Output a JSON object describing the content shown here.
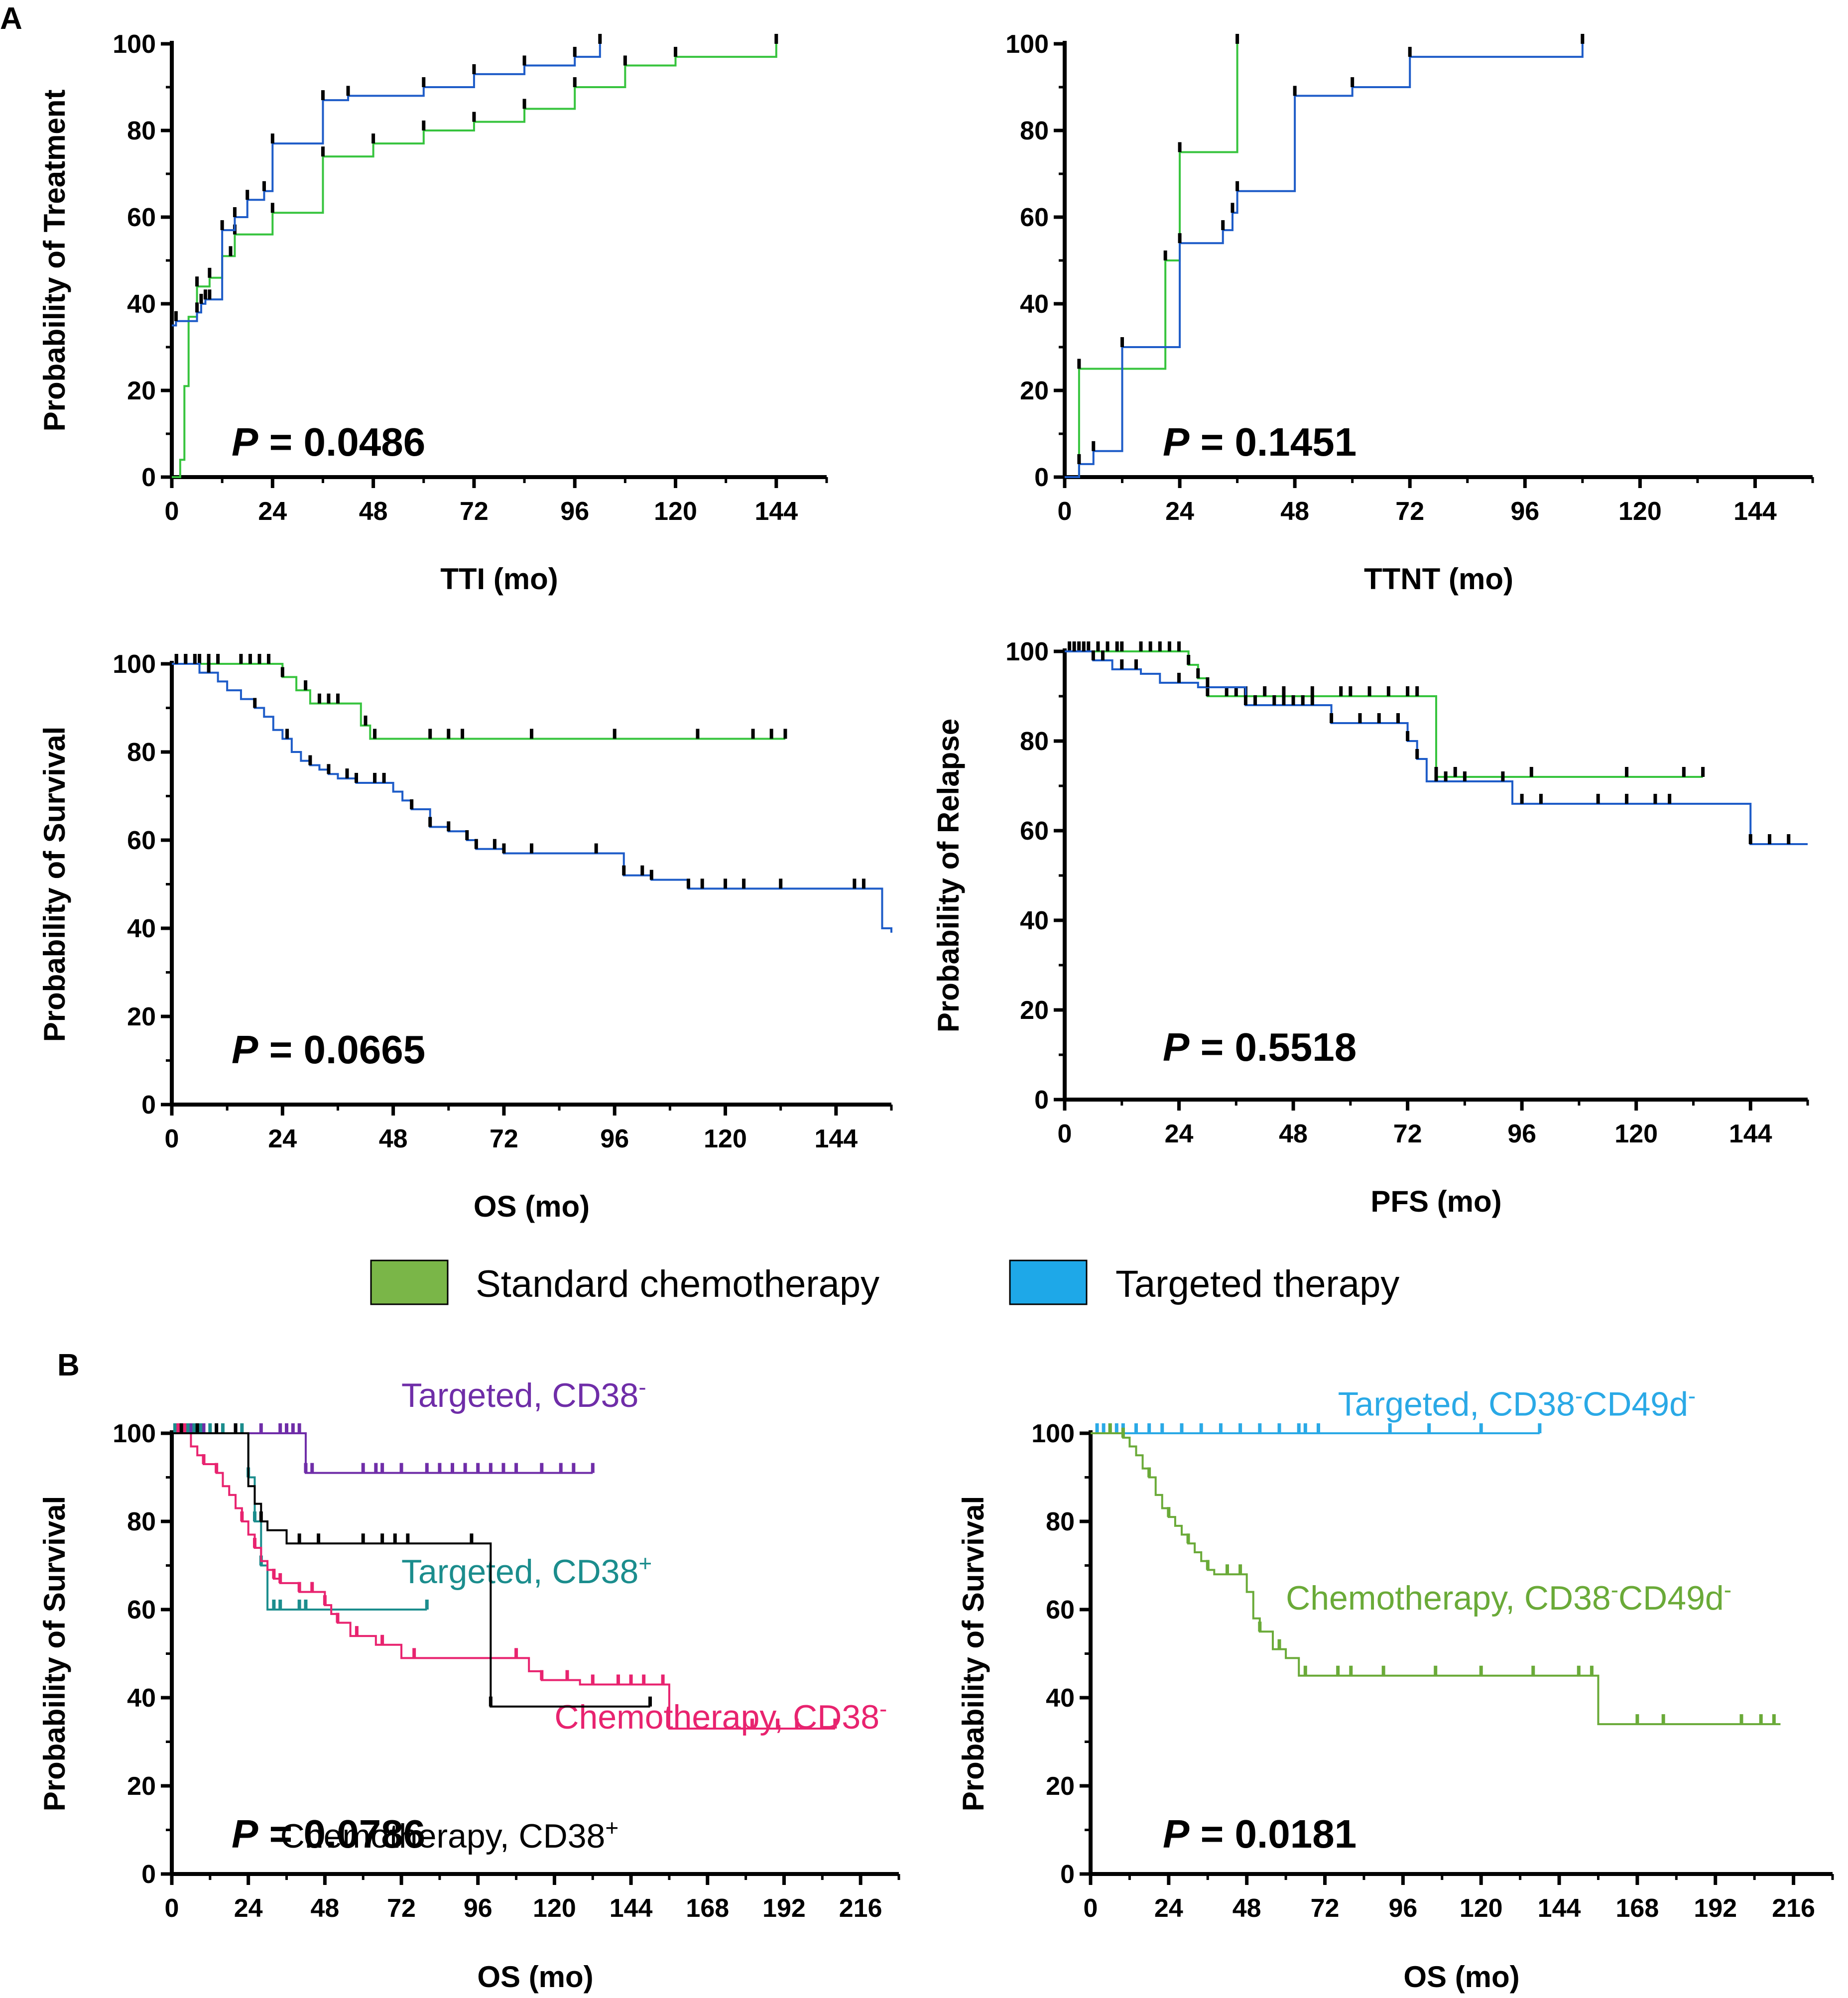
{
  "figure": {
    "panel_labels": [
      "A",
      "B"
    ],
    "legend": [
      {
        "label": "Standard chemotherapy",
        "color": "#7ab648"
      },
      {
        "label": "Targeted therapy",
        "color": "#1ea8e8"
      }
    ]
  },
  "chart_data": [
    {
      "id": "A1",
      "type": "line",
      "step": true,
      "xlabel": "TTI (mo)",
      "ylabel": "Probability of Treatment",
      "xlim": [
        0,
        156
      ],
      "ylim": [
        0,
        100
      ],
      "xticks": [
        "0",
        "24",
        "48",
        "72",
        "96",
        "120",
        "144"
      ],
      "yticks": [
        "0",
        "20",
        "40",
        "60",
        "80",
        "100"
      ],
      "p_prefix": "P",
      "p_text": "= 0.0486",
      "series": [
        {
          "name": "Standard chemotherapy",
          "color": "#37c43e",
          "x": [
            0,
            2,
            3,
            4,
            6,
            9,
            12,
            15,
            17,
            24,
            36,
            48,
            60,
            72,
            84,
            96,
            108,
            120,
            144
          ],
          "y": [
            0,
            4,
            21,
            37,
            44,
            46,
            51,
            56,
            56,
            61,
            74,
            77,
            80,
            82,
            85,
            90,
            95,
            97,
            100
          ],
          "censor_x": [
            6,
            9,
            14,
            15,
            24,
            36,
            48,
            60,
            72,
            84,
            96,
            108,
            120,
            144
          ]
        },
        {
          "name": "Targeted therapy",
          "color": "#1e5cc8",
          "x": [
            0,
            1,
            6,
            7,
            8,
            9,
            12,
            13,
            15,
            18,
            22,
            24,
            36,
            42,
            60,
            72,
            84,
            96,
            102
          ],
          "y": [
            35,
            36,
            38,
            40,
            41,
            41,
            57,
            57,
            60,
            64,
            66,
            77,
            87,
            88,
            90,
            93,
            95,
            97,
            100
          ],
          "censor_x": [
            1,
            6,
            7,
            8,
            9,
            12,
            15,
            18,
            22,
            24,
            36,
            42,
            60,
            72,
            84,
            96,
            102
          ]
        }
      ]
    },
    {
      "id": "A2",
      "type": "line",
      "step": true,
      "xlabel": "TTNT (mo)",
      "ylabel": "",
      "xlim": [
        0,
        156
      ],
      "ylim": [
        0,
        100
      ],
      "xticks": [
        "0",
        "24",
        "48",
        "72",
        "96",
        "120",
        "144"
      ],
      "yticks": [
        "0",
        "20",
        "40",
        "60",
        "80",
        "100"
      ],
      "p_prefix": "P",
      "p_text": "= 0.1451",
      "series": [
        {
          "name": "Standard chemotherapy",
          "color": "#37c43e",
          "x": [
            0,
            3,
            21,
            24,
            36
          ],
          "y": [
            0,
            25,
            50,
            75,
            100
          ],
          "censor_x": [
            3,
            21,
            24,
            36
          ]
        },
        {
          "name": "Targeted therapy",
          "color": "#1e5cc8",
          "x": [
            0,
            3,
            5,
            6,
            12,
            24,
            33,
            35,
            36,
            48,
            60,
            72,
            108
          ],
          "y": [
            0,
            3,
            3,
            6,
            30,
            54,
            57,
            61,
            66,
            88,
            90,
            97,
            100
          ],
          "censor_x": [
            3,
            6,
            12,
            24,
            33,
            35,
            36,
            48,
            60,
            72,
            108
          ]
        }
      ]
    },
    {
      "id": "A3",
      "type": "line",
      "step": true,
      "xlabel": "OS (mo)",
      "ylabel": "Probability of Survival",
      "xlim": [
        0,
        156
      ],
      "ylim": [
        0,
        100
      ],
      "xticks": [
        "0",
        "24",
        "48",
        "72",
        "96",
        "120",
        "144"
      ],
      "yticks": [
        "0",
        "20",
        "40",
        "60",
        "80",
        "100"
      ],
      "p_prefix": "P",
      "p_text": "= 0.0665",
      "series": [
        {
          "name": "Standard chemotherapy",
          "color": "#37c43e",
          "x": [
            0,
            24,
            27,
            30,
            41,
            43,
            133
          ],
          "y": [
            100,
            97,
            94,
            91,
            86,
            83,
            83
          ],
          "censor_x": [
            1,
            3,
            6,
            8,
            10,
            15,
            17,
            19,
            21,
            24,
            29,
            32,
            34,
            36,
            42,
            44,
            56,
            60,
            63,
            78,
            96,
            114,
            126,
            130,
            133
          ]
        },
        {
          "name": "Targeted therapy",
          "color": "#1e5cc8",
          "x": [
            0,
            6,
            10,
            12,
            15,
            18,
            20,
            22,
            24,
            26,
            28,
            30,
            32,
            34,
            36,
            40,
            48,
            50,
            52,
            56,
            60,
            64,
            66,
            72,
            98,
            104,
            112,
            116,
            152,
            154,
            156
          ],
          "y": [
            100,
            98,
            96,
            94,
            92,
            90,
            88,
            85,
            83,
            80,
            78,
            77,
            76,
            75,
            74,
            73,
            71,
            69,
            67,
            63,
            62,
            60,
            58,
            57,
            52,
            51,
            49,
            49,
            49,
            40,
            39
          ],
          "censor_x": [
            1,
            3,
            5,
            8,
            18,
            25,
            30,
            34,
            38,
            40,
            44,
            46,
            52,
            56,
            60,
            64,
            66,
            70,
            72,
            78,
            92,
            98,
            102,
            104,
            112,
            115,
            120,
            124,
            132,
            148,
            150
          ]
        }
      ]
    },
    {
      "id": "A4",
      "type": "line",
      "step": true,
      "xlabel": "PFS (mo)",
      "ylabel": "Probability of Relapse",
      "xlim": [
        0,
        156
      ],
      "ylim": [
        0,
        100
      ],
      "xticks": [
        "0",
        "24",
        "48",
        "72",
        "96",
        "120",
        "144"
      ],
      "yticks": [
        "0",
        "20",
        "40",
        "60",
        "80",
        "100"
      ],
      "p_prefix": "P",
      "p_text": "= 0.5518",
      "series": [
        {
          "name": "Standard chemotherapy",
          "color": "#37c43e",
          "x": [
            0,
            26,
            28,
            30,
            76,
            78,
            134
          ],
          "y": [
            100,
            97,
            94,
            90,
            90,
            72,
            72
          ],
          "censor_x": [
            1,
            3,
            5,
            7,
            9,
            11,
            12,
            16,
            18,
            20,
            22,
            24,
            26,
            28,
            30,
            34,
            36,
            38,
            42,
            46,
            52,
            58,
            60,
            64,
            68,
            72,
            74,
            78,
            82,
            98,
            118,
            130,
            134
          ]
        },
        {
          "name": "Targeted therapy",
          "color": "#1e5cc8",
          "x": [
            0,
            6,
            10,
            16,
            20,
            28,
            38,
            56,
            72,
            74,
            76,
            94,
            144,
            156
          ],
          "y": [
            100,
            98,
            96,
            95,
            93,
            92,
            88,
            84,
            80,
            76,
            71,
            66,
            57,
            57
          ],
          "censor_x": [
            2,
            4,
            6,
            8,
            12,
            15,
            24,
            30,
            38,
            40,
            44,
            46,
            48,
            50,
            52,
            56,
            62,
            66,
            70,
            72,
            74,
            78,
            80,
            84,
            92,
            96,
            100,
            112,
            118,
            124,
            127,
            144,
            148,
            152
          ]
        }
      ]
    },
    {
      "id": "B1",
      "type": "line",
      "step": true,
      "xlabel": "OS (mo)",
      "ylabel": "Probability of Survival",
      "xlim": [
        0,
        228
      ],
      "ylim": [
        0,
        100
      ],
      "xticks": [
        "0",
        "24",
        "48",
        "72",
        "96",
        "120",
        "144",
        "168",
        "192",
        "216"
      ],
      "yticks": [
        "0",
        "20",
        "40",
        "60",
        "80",
        "100"
      ],
      "p_prefix": "P",
      "p_text": "= 0.0786",
      "series": [
        {
          "name": "Targeted, CD38",
          "sup": "-",
          "color": "#6f2da8",
          "label_pos": [
            72,
            106
          ],
          "x": [
            0,
            42,
            132
          ],
          "y": [
            100,
            91,
            91
          ],
          "censor_x": [
            4,
            6,
            8,
            10,
            14,
            20,
            28,
            34,
            36,
            38,
            40,
            42,
            44,
            60,
            64,
            66,
            72,
            80,
            84,
            88,
            92,
            96,
            100,
            104,
            108,
            116,
            122,
            126,
            132
          ]
        },
        {
          "name": "Targeted, CD38",
          "sup": "+",
          "color": "#1b8d8d",
          "label_pos": [
            72,
            66
          ],
          "x": [
            0,
            24,
            26,
            28,
            30,
            80
          ],
          "y": [
            100,
            90,
            80,
            70,
            60,
            60
          ],
          "censor_x": [
            1,
            3,
            5,
            7,
            9,
            12,
            16,
            22,
            24,
            26,
            28,
            32,
            34,
            40,
            42,
            80
          ]
        },
        {
          "name": "Chemotherapy, CD38",
          "sup": "-",
          "color": "#e8236f",
          "label_pos": [
            120,
            33
          ],
          "x": [
            0,
            6,
            8,
            10,
            14,
            16,
            18,
            20,
            22,
            24,
            26,
            28,
            30,
            32,
            34,
            40,
            48,
            50,
            52,
            56,
            64,
            72,
            80,
            112,
            116,
            120,
            128,
            156,
            184,
            208
          ],
          "y": [
            100,
            97,
            95,
            93,
            91,
            88,
            86,
            83,
            80,
            77,
            74,
            71,
            69,
            67,
            66,
            64,
            61,
            59,
            57,
            54,
            52,
            49,
            49,
            46,
            44,
            44,
            43,
            33,
            33,
            33
          ],
          "censor_x": [
            2,
            4,
            10,
            14,
            22,
            26,
            32,
            34,
            40,
            44,
            48,
            52,
            58,
            66,
            76,
            108,
            116,
            124,
            132,
            140,
            144,
            148,
            154,
            182,
            190,
            196,
            208
          ]
        },
        {
          "name": "Chemotherapy, CD38",
          "sup": "+",
          "color": "#000000",
          "label_pos": [
            34,
            6
          ],
          "x": [
            0,
            24,
            26,
            28,
            30,
            36,
            52,
            100,
            150
          ],
          "y": [
            100,
            88,
            84,
            80,
            78,
            75,
            75,
            38,
            38
          ],
          "censor_x": [
            3,
            8,
            14,
            20,
            28,
            40,
            46,
            60,
            66,
            70,
            74,
            94,
            100,
            150
          ]
        }
      ]
    },
    {
      "id": "B2",
      "type": "line",
      "step": true,
      "xlabel": "OS (mo)",
      "ylabel": "Probability of Survival",
      "xlim": [
        0,
        228
      ],
      "ylim": [
        0,
        100
      ],
      "xticks": [
        "0",
        "24",
        "48",
        "72",
        "96",
        "120",
        "144",
        "168",
        "192",
        "216"
      ],
      "yticks": [
        "0",
        "20",
        "40",
        "60",
        "80",
        "100"
      ],
      "p_prefix": "P",
      "p_text": "= 0.0181",
      "series": [
        {
          "name": "Targeted, CD38",
          "sup": "-",
          "name2": "CD49d",
          "sup2": "-",
          "color": "#2aa9e6",
          "label_pos": [
            76,
            104
          ],
          "x": [
            0,
            138
          ],
          "y": [
            100,
            100
          ],
          "censor_x": [
            2,
            4,
            6,
            8,
            10,
            14,
            18,
            22,
            28,
            34,
            40,
            46,
            52,
            58,
            64,
            66,
            70,
            92,
            104,
            120,
            138
          ]
        },
        {
          "name": "Chemotherapy, CD38",
          "sup": "-",
          "name2": "CD49d",
          "sup2": "-",
          "color": "#6aaa38",
          "label_pos": [
            60,
            60
          ],
          "x": [
            0,
            10,
            12,
            14,
            16,
            18,
            20,
            22,
            24,
            26,
            28,
            30,
            32,
            34,
            36,
            38,
            40,
            48,
            50,
            52,
            56,
            60,
            64,
            72,
            84,
            128,
            156,
            168,
            208,
            212
          ],
          "y": [
            100,
            99,
            97,
            95,
            92,
            90,
            86,
            83,
            81,
            79,
            77,
            75,
            73,
            71,
            69,
            68,
            68,
            64,
            58,
            55,
            51,
            49,
            45,
            45,
            45,
            45,
            34,
            34,
            34,
            34
          ],
          "censor_x": [
            6,
            10,
            18,
            24,
            30,
            36,
            42,
            46,
            52,
            58,
            66,
            76,
            80,
            90,
            106,
            120,
            136,
            150,
            154,
            168,
            176,
            200,
            206,
            210
          ]
        }
      ]
    }
  ]
}
